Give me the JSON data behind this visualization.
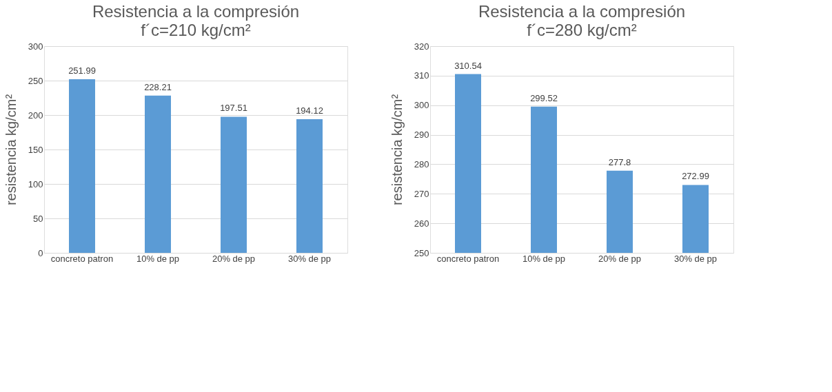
{
  "chart_data": [
    {
      "type": "bar",
      "title": "Resistencia a la compresión",
      "subtitle": "f´c=210 kg/cm²",
      "ylabel": "resistencia kg/cm²",
      "categories": [
        "concreto patron",
        "10% de pp",
        "20% de pp",
        "30% de pp"
      ],
      "values": [
        251.99,
        228.21,
        197.51,
        194.12
      ],
      "color": "#5b9bd5",
      "ylim": [
        0,
        300
      ],
      "yticks": [
        0,
        50,
        100,
        150,
        200,
        250,
        300
      ],
      "grid": "y",
      "data_labels": true
    },
    {
      "type": "bar",
      "title": "Resistencia a la compresión",
      "subtitle": "f´c=280 kg/cm²",
      "ylabel": "resistencia kg/cm²",
      "categories": [
        "concreto patron",
        "10% de pp",
        "20% de pp",
        "30% de pp"
      ],
      "values": [
        310.54,
        299.52,
        277.8,
        272.99
      ],
      "color": "#5b9bd5",
      "ylim": [
        250,
        320
      ],
      "yticks": [
        250,
        260,
        270,
        280,
        290,
        300,
        310,
        320
      ],
      "grid": "y",
      "data_labels": true
    }
  ]
}
